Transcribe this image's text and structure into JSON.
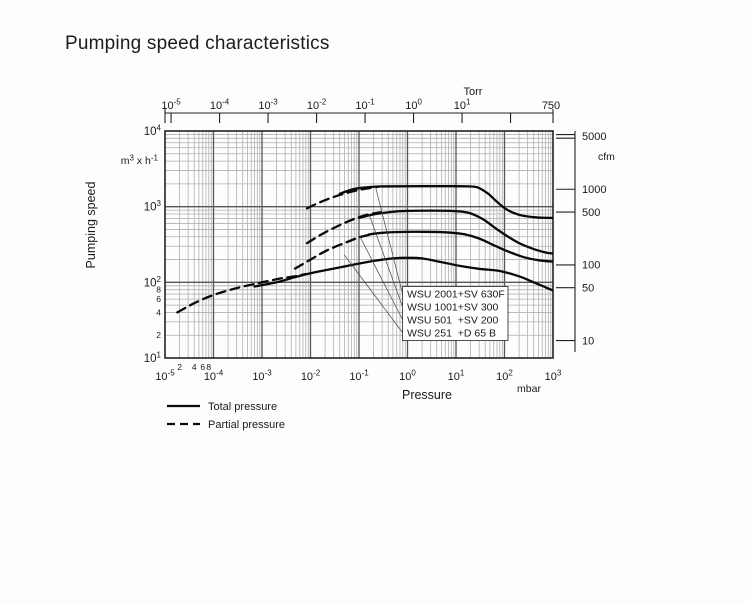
{
  "title": "Pumping speed characteristics",
  "colors": {
    "background": "#fdfdfd",
    "text": "#1a1a1a",
    "curve": "#0a0a0a",
    "grid_minor": "#b0b0b0",
    "grid_major": "#565656",
    "frame": "#222222",
    "leader": "#444444"
  },
  "legend": [
    {
      "label": "Total pressure",
      "line": "solid"
    },
    {
      "label": "Partial pressure",
      "line": "dashed"
    }
  ],
  "axes": {
    "x_bottom": {
      "label": "Pressure",
      "unit": "mbar",
      "scale": "log",
      "decade_exponents": [
        -5,
        -4,
        -3,
        -2,
        -1,
        0,
        1,
        2,
        3
      ],
      "minor_labels": [
        {
          "text": "2",
          "value": 2e-05
        },
        {
          "text": "4",
          "value": 4e-05
        },
        {
          "text": "6",
          "value": 6e-05
        },
        {
          "text": "8",
          "value": 8e-05
        }
      ]
    },
    "x_top": {
      "unit": "Torr",
      "labeled_exponents": [
        -5,
        -4,
        -3,
        -2,
        -1,
        0,
        1
      ],
      "unlabeled_tick_exponents": [
        2
      ],
      "end_label": "750",
      "mbar_per_torr": 1.3332
    },
    "y_left": {
      "label": "Pumping speed",
      "unit_parts": {
        "base": "m",
        "sup1": "3",
        "mid": " x h",
        "sup2": "-1"
      },
      "scale": "log",
      "decade_exponents": [
        1,
        2,
        3,
        4
      ],
      "minor_labels": [
        {
          "text": "8",
          "value": 80
        },
        {
          "text": "6",
          "value": 60
        },
        {
          "text": "4",
          "value": 40
        },
        {
          "text": "2",
          "value": 20
        }
      ]
    },
    "y_right": {
      "unit": "cfm",
      "tick_values": [
        5000,
        1000,
        500,
        100,
        50,
        10
      ],
      "m3h_per_cfm": 1.69901,
      "double_tick_value": 5000
    }
  },
  "chart_data": {
    "type": "line",
    "title": "Pumping speed characteristics",
    "xlabel": "Pressure (mbar / Torr), log scale",
    "ylabel": "Pumping speed (m3/h left, cfm right), log scale",
    "xlim_mbar": [
      1e-05,
      1000
    ],
    "ylim_m3h": [
      10,
      10000
    ],
    "grid": true,
    "series": [
      {
        "id": "wsu2001-total",
        "pump": "WSU 2001+SV 630F",
        "pressure_type": "total",
        "style": "solid",
        "points": [
          [
            0.04,
            1480
          ],
          [
            0.07,
            1680
          ],
          [
            0.12,
            1780
          ],
          [
            0.25,
            1845
          ],
          [
            0.6,
            1860
          ],
          [
            2,
            1865
          ],
          [
            8,
            1865
          ],
          [
            18,
            1855
          ],
          [
            28,
            1795
          ],
          [
            45,
            1500
          ],
          [
            70,
            1160
          ],
          [
            110,
            920
          ],
          [
            200,
            780
          ],
          [
            400,
            725
          ],
          [
            700,
            712
          ],
          [
            1000,
            710
          ]
        ]
      },
      {
        "id": "wsu2001-partial",
        "pump": "WSU 2001+SV 630F",
        "pressure_type": "partial",
        "style": "dashed",
        "points": [
          [
            0.0085,
            950
          ],
          [
            0.015,
            1130
          ],
          [
            0.03,
            1340
          ],
          [
            0.06,
            1540
          ],
          [
            0.12,
            1700
          ],
          [
            0.25,
            1830
          ]
        ]
      },
      {
        "id": "wsu1001-total",
        "pump": "WSU 1001+SV 300",
        "pressure_type": "total",
        "style": "solid",
        "points": [
          [
            0.1,
            710
          ],
          [
            0.2,
            790
          ],
          [
            0.45,
            850
          ],
          [
            1,
            880
          ],
          [
            3,
            888
          ],
          [
            8,
            878
          ],
          [
            18,
            832
          ],
          [
            35,
            690
          ],
          [
            60,
            540
          ],
          [
            100,
            430
          ],
          [
            200,
            330
          ],
          [
            400,
            275
          ],
          [
            700,
            248
          ],
          [
            1000,
            240
          ]
        ]
      },
      {
        "id": "wsu1001-partial",
        "pump": "WSU 1001+SV 300",
        "pressure_type": "partial",
        "style": "dashed",
        "points": [
          [
            0.0085,
            330
          ],
          [
            0.018,
            440
          ],
          [
            0.04,
            570
          ],
          [
            0.08,
            690
          ],
          [
            0.15,
            785
          ],
          [
            0.28,
            845
          ]
        ]
      },
      {
        "id": "wsu501-total",
        "pump": "WSU 501 +SV 200",
        "pressure_type": "total",
        "style": "solid",
        "points": [
          [
            0.16,
            430
          ],
          [
            0.3,
            452
          ],
          [
            0.7,
            463
          ],
          [
            2,
            466
          ],
          [
            6,
            458
          ],
          [
            15,
            432
          ],
          [
            30,
            380
          ],
          [
            60,
            310
          ],
          [
            120,
            255
          ],
          [
            250,
            215
          ],
          [
            500,
            196
          ],
          [
            1000,
            188
          ]
        ]
      },
      {
        "id": "wsu501-partial",
        "pump": "WSU 501 +SV 200",
        "pressure_type": "partial",
        "style": "dashed",
        "points": [
          [
            0.0048,
            152
          ],
          [
            0.01,
            200
          ],
          [
            0.022,
            265
          ],
          [
            0.05,
            330
          ],
          [
            0.1,
            392
          ],
          [
            0.19,
            435
          ]
        ]
      },
      {
        "id": "wsu251-total",
        "pump": "WSU 251 +D 65 B",
        "pressure_type": "total",
        "style": "solid",
        "points": [
          [
            0.0007,
            88
          ],
          [
            0.002,
            100
          ],
          [
            0.005,
            118
          ],
          [
            0.01,
            132
          ],
          [
            0.03,
            152
          ],
          [
            0.08,
            172
          ],
          [
            0.2,
            192
          ],
          [
            0.5,
            207
          ],
          [
            1,
            211
          ],
          [
            2,
            207
          ],
          [
            5,
            185
          ],
          [
            12,
            165
          ],
          [
            30,
            151
          ],
          [
            80,
            141
          ],
          [
            200,
            120
          ],
          [
            400,
            100
          ],
          [
            700,
            86
          ],
          [
            1000,
            78
          ]
        ]
      },
      {
        "id": "wsu251-partial",
        "pump": "WSU 251 +D 65 B",
        "pressure_type": "partial",
        "style": "dashed",
        "points": [
          [
            1.8e-05,
            40
          ],
          [
            4e-05,
            53
          ],
          [
            0.0001,
            68
          ],
          [
            0.0003,
            84
          ],
          [
            0.001,
            100
          ],
          [
            0.0025,
            113
          ],
          [
            0.005,
            121
          ],
          [
            0.008,
            129
          ]
        ]
      }
    ],
    "curve_label_box": {
      "labels": [
        "WSU 2001+SV 630F",
        "WSU 1001+SV 300",
        "WSU 501  +SV 200",
        "WSU 251  +D 65 B"
      ],
      "leader_targets_mbar_m3h": [
        [
          0.22,
          1800
        ],
        [
          0.16,
          800
        ],
        [
          0.105,
          400
        ],
        [
          0.05,
          230
        ]
      ]
    }
  }
}
